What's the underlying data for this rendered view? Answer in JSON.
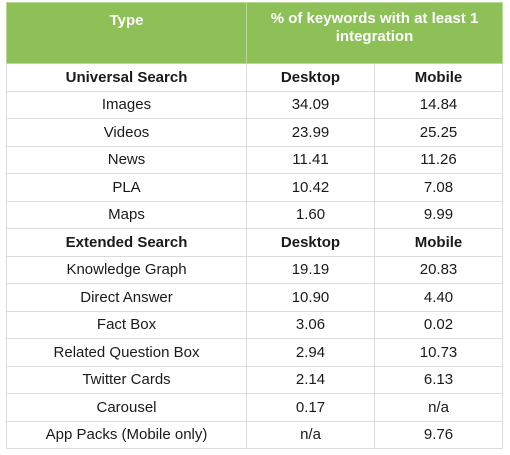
{
  "header": {
    "type_label": "Type",
    "metric_label": "% of keywords with at least 1 integration"
  },
  "sections": [
    {
      "name": "Universal Search",
      "col_desktop": "Desktop",
      "col_mobile": "Mobile",
      "rows": [
        {
          "type": "Images",
          "desktop": "34.09",
          "mobile": "14.84"
        },
        {
          "type": "Videos",
          "desktop": "23.99",
          "mobile": "25.25"
        },
        {
          "type": "News",
          "desktop": "11.41",
          "mobile": "11.26"
        },
        {
          "type": "PLA",
          "desktop": "10.42",
          "mobile": "7.08"
        },
        {
          "type": "Maps",
          "desktop": "1.60",
          "mobile": "9.99"
        }
      ]
    },
    {
      "name": "Extended Search",
      "col_desktop": "Desktop",
      "col_mobile": "Mobile",
      "rows": [
        {
          "type": "Knowledge Graph",
          "desktop": "19.19",
          "mobile": "20.83"
        },
        {
          "type": "Direct Answer",
          "desktop": "10.90",
          "mobile": "4.40"
        },
        {
          "type": "Fact Box",
          "desktop": "3.06",
          "mobile": "0.02"
        },
        {
          "type": "Related Question Box",
          "desktop": "2.94",
          "mobile": "10.73"
        },
        {
          "type": "Twitter Cards",
          "desktop": "2.14",
          "mobile": "6.13"
        },
        {
          "type": "Carousel",
          "desktop": "0.17",
          "mobile": "n/a"
        },
        {
          "type": "App Packs (Mobile only)",
          "desktop": "n/a",
          "mobile": "9.76"
        }
      ]
    }
  ],
  "colors": {
    "header_bg": "#8dc056",
    "header_text": "#ffffff",
    "grid_line": "#dcdcdc"
  }
}
